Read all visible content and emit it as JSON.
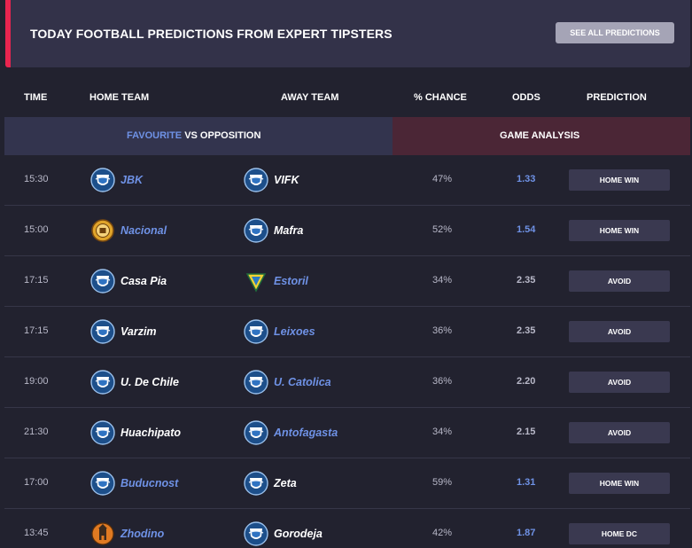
{
  "banner": {
    "title": "TODAY FOOTBALL PREDICTIONS FROM EXPERT TIPSTERS",
    "button_label": "SEE ALL PREDICTIONS"
  },
  "columns": {
    "time": "TIME",
    "home": "HOME TEAM",
    "away": "AWAY TEAM",
    "chance": "% CHANCE",
    "odds": "ODDS",
    "prediction": "PREDICTION"
  },
  "subheader": {
    "favourite": "FAVOURITE",
    "vs_opposition": " VS OPPOSITION",
    "game_analysis": "GAME ANALYSIS"
  },
  "colors": {
    "accent": "#e8254f",
    "favourite": "#6f92e6",
    "background": "#22222f",
    "banner": "#333249"
  },
  "matches": [
    {
      "time": "15:30",
      "home": "JBK",
      "home_icon": "shield-crest-icon",
      "home_fav": true,
      "away": "VIFK",
      "away_icon": "shield-crest-icon",
      "away_fav": false,
      "chance": "47%",
      "odds": "1.33",
      "odds_fav": true,
      "prediction": "HOME WIN"
    },
    {
      "time": "15:00",
      "home": "Nacional",
      "home_icon": "round-crest-icon",
      "home_fav": true,
      "away": "Mafra",
      "away_icon": "shield-crest-icon",
      "away_fav": false,
      "chance": "52%",
      "odds": "1.54",
      "odds_fav": true,
      "prediction": "HOME WIN"
    },
    {
      "time": "17:15",
      "home": "Casa Pia",
      "home_icon": "shield-crest-icon",
      "home_fav": false,
      "away": "Estoril",
      "away_icon": "triangle-crest-icon",
      "away_fav": true,
      "chance": "34%",
      "odds": "2.35",
      "odds_fav": false,
      "prediction": "AVOID"
    },
    {
      "time": "17:15",
      "home": "Varzim",
      "home_icon": "shield-crest-icon",
      "home_fav": false,
      "away": "Leixoes",
      "away_icon": "shield-crest-icon",
      "away_fav": true,
      "chance": "36%",
      "odds": "2.35",
      "odds_fav": false,
      "prediction": "AVOID"
    },
    {
      "time": "19:00",
      "home": "U. De Chile",
      "home_icon": "shield-crest-icon",
      "home_fav": false,
      "away": "U. Catolica",
      "away_icon": "shield-crest-icon",
      "away_fav": true,
      "chance": "36%",
      "odds": "2.20",
      "odds_fav": false,
      "prediction": "AVOID"
    },
    {
      "time": "21:30",
      "home": "Huachipato",
      "home_icon": "shield-crest-icon",
      "home_fav": false,
      "away": "Antofagasta",
      "away_icon": "shield-crest-icon",
      "away_fav": true,
      "chance": "34%",
      "odds": "2.15",
      "odds_fav": false,
      "prediction": "AVOID"
    },
    {
      "time": "17:00",
      "home": "Buducnost",
      "home_icon": "shield-crest-icon",
      "home_fav": true,
      "away": "Zeta",
      "away_icon": "shield-crest-icon",
      "away_fav": false,
      "chance": "59%",
      "odds": "1.31",
      "odds_fav": true,
      "prediction": "HOME WIN"
    },
    {
      "time": "13:45",
      "home": "Zhodino",
      "home_icon": "tower-crest-icon",
      "home_fav": true,
      "away": "Gorodeja",
      "away_icon": "shield-crest-icon",
      "away_fav": false,
      "chance": "42%",
      "odds": "1.87",
      "odds_fav": true,
      "prediction": "HOME DC"
    }
  ]
}
